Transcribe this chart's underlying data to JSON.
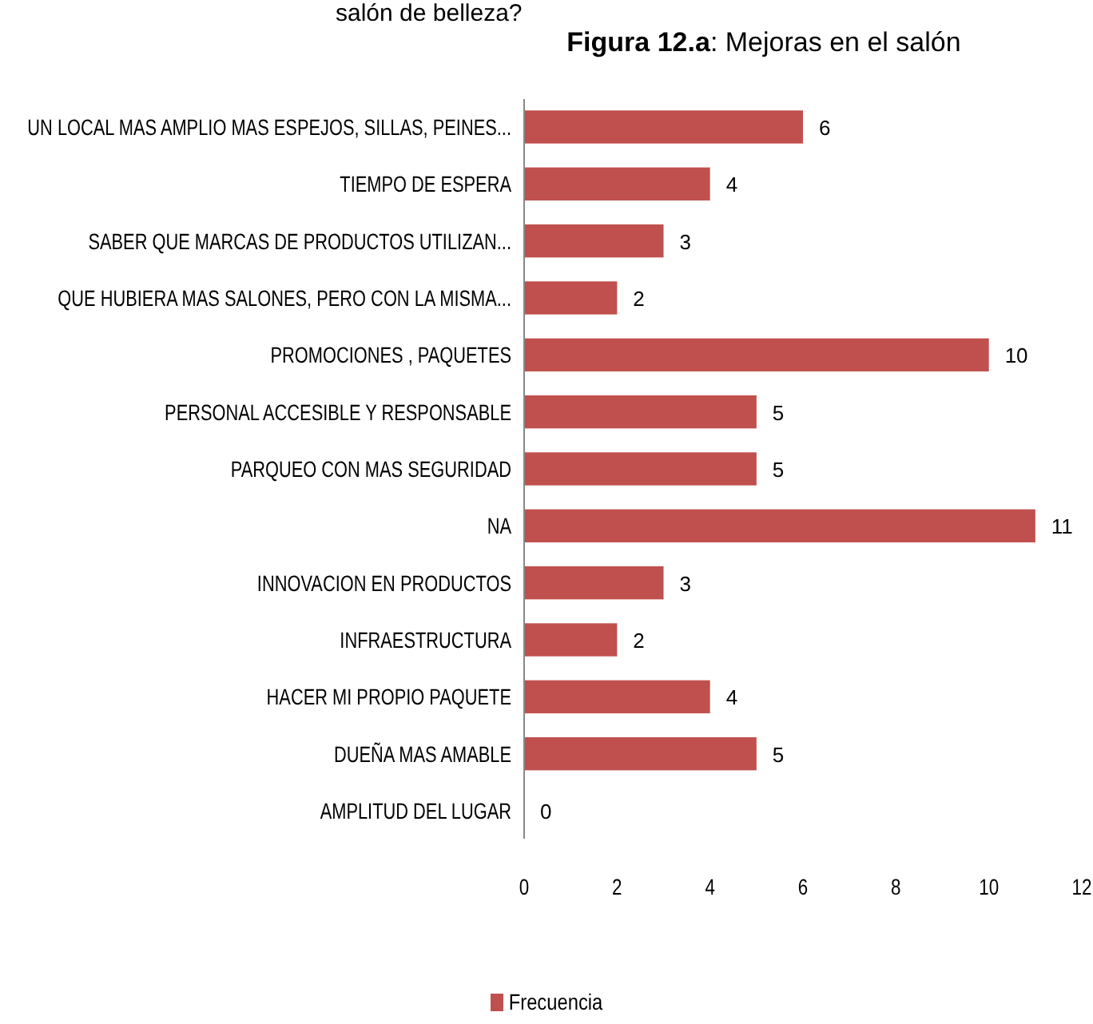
{
  "chart_data": {
    "type": "bar",
    "orientation": "horizontal",
    "title": "Figura 12.a: Mejoras en el salón",
    "annotations": [
      "salón de belleza?"
    ],
    "categories": [
      "UN LOCAL MAS AMPLIO MAS ESPEJOS, SILLAS, PEINES...",
      "TIEMPO DE ESPERA",
      "SABER QUE MARCAS DE PRODUCTOS UTILIZAN...",
      "QUE HUBIERA MAS SALONES, PERO CON LA MISMA...",
      "PROMOCIONES , PAQUETES",
      "PERSONAL ACCESIBLE Y RESPONSABLE",
      "PARQUEO CON MAS SEGURIDAD",
      "NA",
      "INNOVACION EN PRODUCTOS",
      "INFRAESTRUCTURA",
      "HACER MI PROPIO PAQUETE",
      "DUEÑA MAS AMABLE",
      "AMPLITUD DEL LUGAR"
    ],
    "series": [
      {
        "name": "Frecuencia",
        "color": "#c0504d",
        "values": [
          6,
          4,
          3,
          2,
          10,
          5,
          5,
          11,
          3,
          2,
          4,
          5,
          0
        ]
      }
    ],
    "xlim": [
      0,
      12
    ],
    "xticks": [
      0,
      2,
      4,
      6,
      8,
      10,
      12
    ],
    "data_labels": true,
    "legend": "bottom",
    "grid": false
  }
}
